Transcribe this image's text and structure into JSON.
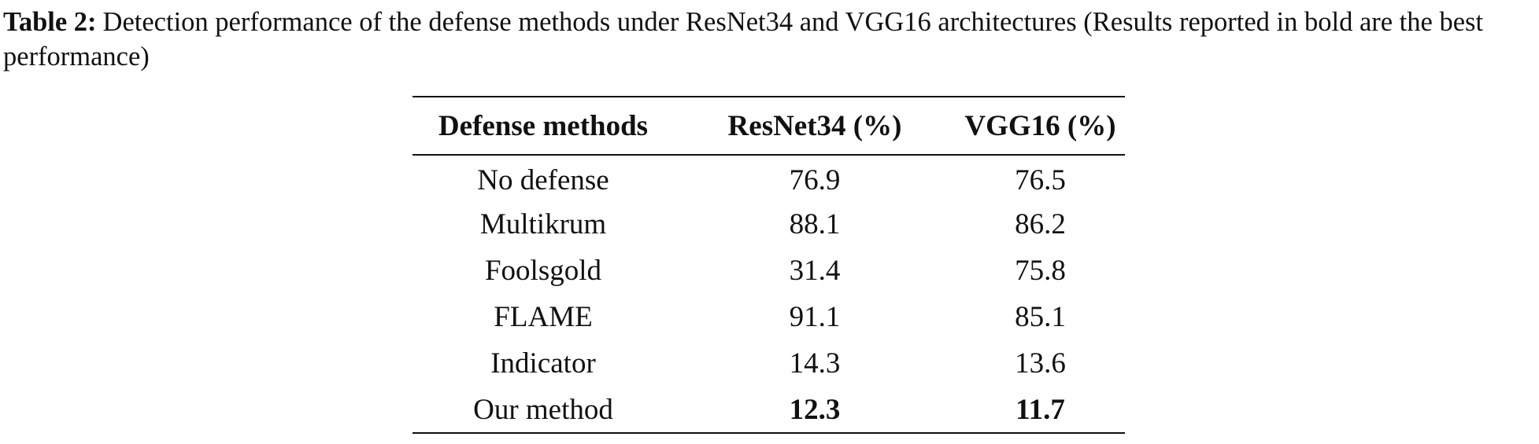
{
  "caption": {
    "label": "Table 2:",
    "text": "Detection performance of the defense methods under ResNet34 and VGG16 architectures (Results reported in bold are the best performance)"
  },
  "table": {
    "header": [
      "Defense methods",
      "ResNet34 (%)",
      "VGG16 (%)"
    ],
    "rows": [
      [
        "No defense",
        "76.9",
        "76.5"
      ],
      [
        "Multikrum",
        "88.1",
        "86.2"
      ],
      [
        "Foolsgold",
        "31.4",
        "75.8"
      ],
      [
        "FLAME",
        "91.1",
        "85.1"
      ],
      [
        "Indicator",
        "14.3",
        "13.6"
      ],
      [
        "Our method",
        "12.3",
        "11.7"
      ]
    ]
  }
}
